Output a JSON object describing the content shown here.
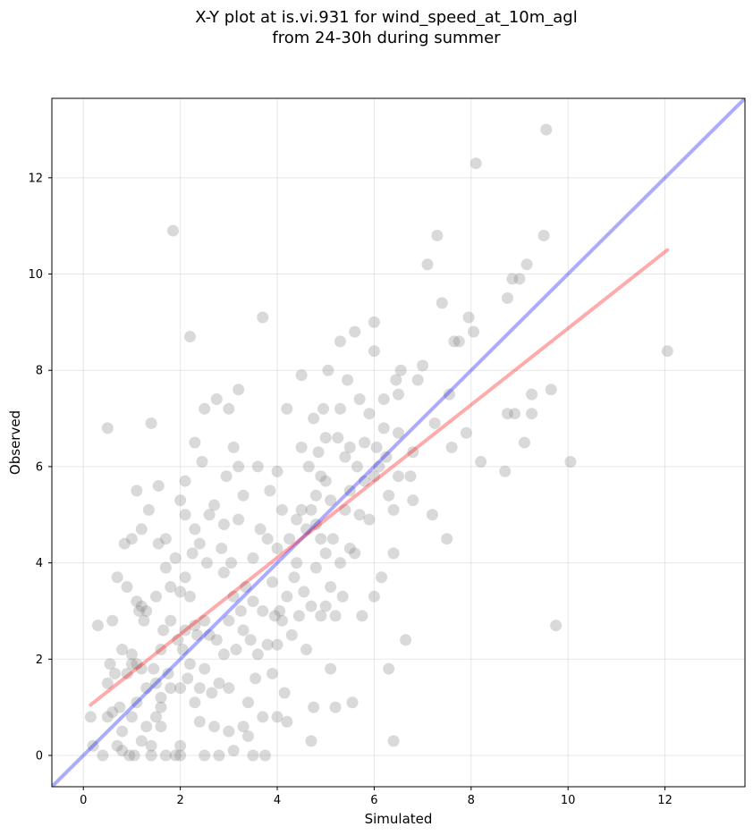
{
  "figure": {
    "title_line1": "X-Y plot at is.vi.931 for wind_speed_at_10m_agl",
    "title_line2": "from 24-30h during summer"
  },
  "chart_data": {
    "type": "scatter",
    "title": "X-Y plot at is.vi.931 for wind_speed_at_10m_agl from 24-30h during summer",
    "xlabel": "Simulated",
    "ylabel": "Observed",
    "xlim": [
      -0.65,
      13.65
    ],
    "ylim": [
      -0.65,
      13.65
    ],
    "xticks": [
      0,
      2,
      4,
      6,
      8,
      10,
      12
    ],
    "yticks": [
      0,
      2,
      4,
      6,
      8,
      10,
      12
    ],
    "grid": true,
    "colors": {
      "points": "#808080",
      "identity_line": "#0000ff",
      "fit_line": "#ff0000"
    },
    "identity_line": {
      "x": [
        -0.65,
        13.65
      ],
      "y": [
        -0.65,
        13.65
      ]
    },
    "fit_line": {
      "x": [
        0.15,
        12.05
      ],
      "y": [
        1.05,
        10.5
      ]
    },
    "points": [
      [
        0.15,
        0.8
      ],
      [
        0.2,
        0.2
      ],
      [
        0.3,
        2.7
      ],
      [
        0.4,
        0
      ],
      [
        0.5,
        0.8
      ],
      [
        0.5,
        6.8
      ],
      [
        0.5,
        1.5
      ],
      [
        0.55,
        1.9
      ],
      [
        0.6,
        2.8
      ],
      [
        0.6,
        0.9
      ],
      [
        0.65,
        1.7
      ],
      [
        0.7,
        3.7
      ],
      [
        0.7,
        0.2
      ],
      [
        0.75,
        1
      ],
      [
        0.8,
        0.1
      ],
      [
        0.8,
        2.2
      ],
      [
        0.8,
        0.5
      ],
      [
        0.85,
        4.4
      ],
      [
        0.9,
        3.5
      ],
      [
        0.9,
        1.7
      ],
      [
        0.95,
        0
      ],
      [
        1,
        4.5
      ],
      [
        1,
        2.1
      ],
      [
        1,
        1.9
      ],
      [
        1,
        0.8
      ],
      [
        1.05,
        0
      ],
      [
        1.1,
        3.2
      ],
      [
        1.1,
        1.9
      ],
      [
        1.1,
        1.1
      ],
      [
        1.1,
        5.5
      ],
      [
        1.15,
        3
      ],
      [
        1.2,
        4.7
      ],
      [
        1.2,
        3.1
      ],
      [
        1.2,
        1.8
      ],
      [
        1.2,
        0.3
      ],
      [
        1.25,
        2.8
      ],
      [
        1.3,
        3
      ],
      [
        1.3,
        1.4
      ],
      [
        1.3,
        0.6
      ],
      [
        1.35,
        5.1
      ],
      [
        1.4,
        6.9
      ],
      [
        1.4,
        0.2
      ],
      [
        1.4,
        0
      ],
      [
        1.45,
        1.8
      ],
      [
        1.5,
        3.3
      ],
      [
        1.5,
        1.5
      ],
      [
        1.5,
        0.8
      ],
      [
        1.55,
        5.6
      ],
      [
        1.55,
        4.4
      ],
      [
        1.6,
        1.2
      ],
      [
        1.6,
        1
      ],
      [
        1.6,
        2.2
      ],
      [
        1.6,
        0.6
      ],
      [
        1.65,
        2.6
      ],
      [
        1.7,
        3.9
      ],
      [
        1.7,
        4.5
      ],
      [
        1.7,
        0
      ],
      [
        1.75,
        1.7
      ],
      [
        1.8,
        1.4
      ],
      [
        1.8,
        3.5
      ],
      [
        1.8,
        2.8
      ],
      [
        1.85,
        10.9
      ],
      [
        1.9,
        0
      ],
      [
        1.9,
        4.1
      ],
      [
        1.95,
        2.4
      ],
      [
        2,
        0
      ],
      [
        2,
        1.4
      ],
      [
        2,
        3.4
      ],
      [
        2,
        5.3
      ],
      [
        2,
        0.2
      ],
      [
        2.05,
        2.2
      ],
      [
        2.1,
        2.6
      ],
      [
        2.1,
        3.7
      ],
      [
        2.1,
        5
      ],
      [
        2.1,
        5.7
      ],
      [
        2.15,
        1.6
      ],
      [
        2.2,
        8.7
      ],
      [
        2.2,
        1.9
      ],
      [
        2.2,
        3.3
      ],
      [
        2.25,
        4.2
      ],
      [
        2.3,
        4.7
      ],
      [
        2.3,
        2.7
      ],
      [
        2.3,
        1.1
      ],
      [
        2.3,
        6.5
      ],
      [
        2.35,
        2.5
      ],
      [
        2.4,
        0.7
      ],
      [
        2.4,
        1.4
      ],
      [
        2.4,
        4.4
      ],
      [
        2.45,
        6.1
      ],
      [
        2.5,
        0
      ],
      [
        2.5,
        7.2
      ],
      [
        2.5,
        2.8
      ],
      [
        2.5,
        1.8
      ],
      [
        2.55,
        4
      ],
      [
        2.6,
        5
      ],
      [
        2.6,
        2.5
      ],
      [
        2.65,
        1.3
      ],
      [
        2.7,
        0.6
      ],
      [
        2.7,
        5.2
      ],
      [
        2.75,
        2.4
      ],
      [
        2.75,
        7.4
      ],
      [
        2.8,
        1.5
      ],
      [
        2.8,
        0
      ],
      [
        2.85,
        4.3
      ],
      [
        2.9,
        3.8
      ],
      [
        2.9,
        2.1
      ],
      [
        2.9,
        4.8
      ],
      [
        2.95,
        5.8
      ],
      [
        3,
        1.4
      ],
      [
        3,
        0.5
      ],
      [
        3,
        2.8
      ],
      [
        3,
        7.2
      ],
      [
        3.05,
        4
      ],
      [
        3.1,
        3.3
      ],
      [
        3.1,
        6.4
      ],
      [
        3.1,
        0.1
      ],
      [
        3.15,
        2.2
      ],
      [
        3.2,
        6
      ],
      [
        3.2,
        4.9
      ],
      [
        3.2,
        7.6
      ],
      [
        3.25,
        3
      ],
      [
        3.3,
        0.6
      ],
      [
        3.3,
        5.4
      ],
      [
        3.3,
        2.6
      ],
      [
        3.35,
        3.5
      ],
      [
        3.4,
        1.1
      ],
      [
        3.4,
        0.4
      ],
      [
        3.45,
        2.4
      ],
      [
        3.5,
        0
      ],
      [
        3.5,
        4.1
      ],
      [
        3.5,
        3.2
      ],
      [
        3.55,
        1.6
      ],
      [
        3.6,
        6
      ],
      [
        3.6,
        2.1
      ],
      [
        3.65,
        4.7
      ],
      [
        3.7,
        0.8
      ],
      [
        3.7,
        3
      ],
      [
        3.7,
        9.1
      ],
      [
        3.75,
        0
      ],
      [
        3.8,
        2.3
      ],
      [
        3.8,
        4.5
      ],
      [
        3.85,
        5.5
      ],
      [
        3.9,
        1.7
      ],
      [
        3.9,
        3.6
      ],
      [
        3.95,
        2.9
      ],
      [
        4,
        5.9
      ],
      [
        4,
        2.3
      ],
      [
        4,
        0.8
      ],
      [
        4,
        4.3
      ],
      [
        4.05,
        3
      ],
      [
        4.1,
        2.8
      ],
      [
        4.1,
        5.1
      ],
      [
        4.15,
        1.3
      ],
      [
        4.2,
        7.2
      ],
      [
        4.2,
        3.3
      ],
      [
        4.2,
        0.7
      ],
      [
        4.25,
        4.5
      ],
      [
        4.3,
        2.5
      ],
      [
        4.35,
        3.7
      ],
      [
        4.4,
        4.9
      ],
      [
        4.4,
        4
      ],
      [
        4.45,
        2.9
      ],
      [
        4.5,
        6.4
      ],
      [
        4.5,
        7.9
      ],
      [
        4.5,
        5.1
      ],
      [
        4.55,
        3.4
      ],
      [
        4.6,
        2.2
      ],
      [
        4.6,
        4.7
      ],
      [
        4.65,
        6
      ],
      [
        4.7,
        5.1
      ],
      [
        4.7,
        3.1
      ],
      [
        4.7,
        0.3
      ],
      [
        4.75,
        1
      ],
      [
        4.75,
        7
      ],
      [
        4.8,
        4.8
      ],
      [
        4.8,
        3.9
      ],
      [
        4.8,
        5.4
      ],
      [
        4.85,
        6.3
      ],
      [
        4.9,
        2.9
      ],
      [
        4.9,
        4.5
      ],
      [
        4.9,
        5.8
      ],
      [
        4.95,
        7.2
      ],
      [
        5,
        4.2
      ],
      [
        5,
        3.1
      ],
      [
        5,
        5.7
      ],
      [
        5,
        6.6
      ],
      [
        5.05,
        8
      ],
      [
        5.1,
        3.5
      ],
      [
        5.1,
        1.8
      ],
      [
        5.1,
        5.3
      ],
      [
        5.15,
        4.5
      ],
      [
        5.2,
        2.9
      ],
      [
        5.2,
        1
      ],
      [
        5.25,
        6.6
      ],
      [
        5.3,
        7.2
      ],
      [
        5.3,
        8.6
      ],
      [
        5.3,
        4
      ],
      [
        5.35,
        3.3
      ],
      [
        5.4,
        5.1
      ],
      [
        5.4,
        6.2
      ],
      [
        5.45,
        7.8
      ],
      [
        5.5,
        4.3
      ],
      [
        5.5,
        5.5
      ],
      [
        5.5,
        6.4
      ],
      [
        5.55,
        1.1
      ],
      [
        5.6,
        8.8
      ],
      [
        5.6,
        4.2
      ],
      [
        5.65,
        6
      ],
      [
        5.7,
        5
      ],
      [
        5.7,
        7.4
      ],
      [
        5.75,
        2.9
      ],
      [
        5.8,
        6.5
      ],
      [
        5.8,
        5.7
      ],
      [
        5.9,
        7.1
      ],
      [
        5.9,
        4.9
      ],
      [
        6,
        8.4
      ],
      [
        6,
        9
      ],
      [
        6,
        3.3
      ],
      [
        6,
        5.8
      ],
      [
        6.05,
        6.4
      ],
      [
        6.1,
        6
      ],
      [
        6.15,
        3.7
      ],
      [
        6.2,
        7.4
      ],
      [
        6.2,
        6.8
      ],
      [
        6.25,
        6.2
      ],
      [
        6.3,
        1.8
      ],
      [
        6.3,
        5.4
      ],
      [
        6.4,
        4.2
      ],
      [
        6.4,
        0.3
      ],
      [
        6.4,
        5.1
      ],
      [
        6.45,
        7.8
      ],
      [
        6.5,
        6.7
      ],
      [
        6.5,
        7.5
      ],
      [
        6.5,
        5.8
      ],
      [
        6.55,
        8
      ],
      [
        6.65,
        2.4
      ],
      [
        6.75,
        5.8
      ],
      [
        6.8,
        5.3
      ],
      [
        6.8,
        6.3
      ],
      [
        6.9,
        7.8
      ],
      [
        7,
        8.1
      ],
      [
        7.1,
        10.2
      ],
      [
        7.2,
        5
      ],
      [
        7.25,
        6.9
      ],
      [
        7.3,
        10.8
      ],
      [
        7.4,
        9.4
      ],
      [
        7.5,
        4.5
      ],
      [
        7.55,
        7.5
      ],
      [
        7.6,
        6.4
      ],
      [
        7.65,
        8.6
      ],
      [
        7.75,
        8.6
      ],
      [
        7.9,
        6.7
      ],
      [
        7.95,
        9.1
      ],
      [
        8.05,
        8.8
      ],
      [
        8.1,
        12.3
      ],
      [
        8.2,
        6.1
      ],
      [
        8.7,
        5.9
      ],
      [
        8.75,
        7.1
      ],
      [
        8.75,
        9.5
      ],
      [
        8.85,
        9.9
      ],
      [
        8.9,
        7.1
      ],
      [
        9,
        9.9
      ],
      [
        9.1,
        6.5
      ],
      [
        9.15,
        10.2
      ],
      [
        9.25,
        7.5
      ],
      [
        9.25,
        7.1
      ],
      [
        9.5,
        10.8
      ],
      [
        9.55,
        13
      ],
      [
        9.65,
        7.6
      ],
      [
        9.75,
        2.7
      ],
      [
        10.05,
        6.1
      ],
      [
        12.05,
        8.4
      ]
    ]
  }
}
